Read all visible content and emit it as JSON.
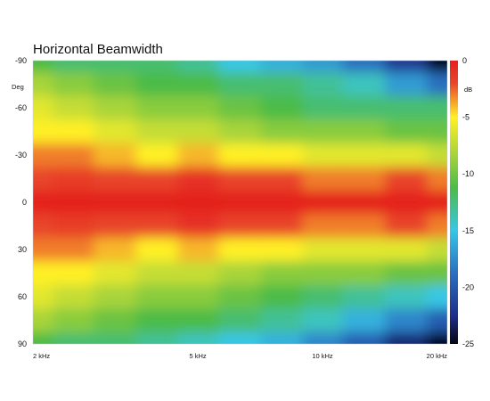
{
  "chart_data": {
    "type": "heatmap",
    "title": "Horizontal Beamwidth",
    "ylabel": "Deg",
    "y_ticks": [
      "-90",
      "-60",
      "-30",
      "0",
      "30",
      "60",
      "90"
    ],
    "y_tick_values": [
      -90,
      -60,
      -30,
      0,
      30,
      60,
      90
    ],
    "ylim": [
      -90,
      90
    ],
    "x_scale": "log",
    "x_ticks": [
      "2 kHz",
      "5 kHz",
      "10 kHz",
      "20 kHz"
    ],
    "x_tick_values": [
      2000,
      5000,
      10000,
      20000
    ],
    "xlim": [
      2000,
      20000
    ],
    "colorbar": {
      "label": "dB",
      "ticks": [
        "0",
        "-5",
        "-10",
        "-15",
        "-20",
        "-25"
      ],
      "tick_values": [
        0,
        -5,
        -10,
        -15,
        -20,
        -25
      ],
      "range": [
        -25,
        0
      ]
    },
    "frequencies_hz": [
      2000,
      2500,
      3150,
      4000,
      5000,
      6300,
      8000,
      10000,
      12500,
      16000,
      20000
    ],
    "angles_deg": [
      -90,
      -75,
      -60,
      -45,
      -30,
      -15,
      0,
      15,
      30,
      45,
      60,
      75,
      90
    ],
    "values_db": [
      [
        -11,
        -12,
        -12,
        -12,
        -13,
        -15,
        -16,
        -17,
        -19,
        -22,
        -25
      ],
      [
        -8,
        -9,
        -10,
        -11,
        -11,
        -12,
        -12,
        -13,
        -14,
        -17,
        -19
      ],
      [
        -6,
        -7,
        -8,
        -9,
        -9,
        -10,
        -11,
        -12,
        -12,
        -12,
        -12
      ],
      [
        -5,
        -5,
        -6,
        -7,
        -7,
        -8,
        -9,
        -9,
        -9,
        -10,
        -10
      ],
      [
        -3,
        -3,
        -4,
        -5,
        -4,
        -5,
        -5,
        -6,
        -6,
        -6,
        -7
      ],
      [
        -2,
        -1.5,
        -2,
        -2,
        -1,
        -2,
        -2,
        -3,
        -3,
        -2,
        -3
      ],
      [
        0,
        0,
        0,
        0,
        0,
        0,
        0,
        0,
        0,
        0,
        0
      ],
      [
        -2,
        -1.5,
        -2,
        -2,
        -1,
        -2,
        -2,
        -3,
        -3,
        -2,
        -3
      ],
      [
        -3,
        -3,
        -4,
        -5,
        -4,
        -5,
        -5,
        -6,
        -6,
        -6,
        -7
      ],
      [
        -5,
        -5,
        -6,
        -7,
        -7,
        -8,
        -9,
        -9,
        -9,
        -10,
        -10
      ],
      [
        -6,
        -7,
        -8,
        -9,
        -9,
        -10,
        -11,
        -12,
        -13,
        -14,
        -15
      ],
      [
        -8,
        -9,
        -10,
        -11,
        -11,
        -12,
        -13,
        -14,
        -16,
        -18,
        -20
      ],
      [
        -11,
        -12,
        -12,
        -13,
        -14,
        -15,
        -16,
        -18,
        -20,
        -23,
        -25
      ]
    ]
  }
}
